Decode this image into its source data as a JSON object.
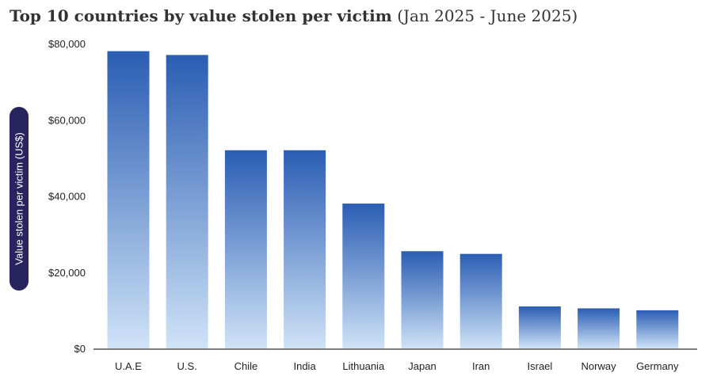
{
  "title": {
    "main": "Top 10 countries by value stolen per victim",
    "sub": "(Jan 2025 - June 2025)"
  },
  "chart_data": {
    "type": "bar",
    "ylabel": "Value stolen per victim (US$)",
    "xlabel": "",
    "categories": [
      "U.A.E",
      "U.S.",
      "Chile",
      "India",
      "Lithuania",
      "Japan",
      "Iran",
      "Israel",
      "Norway",
      "Germany"
    ],
    "values": [
      78000,
      77000,
      52000,
      52000,
      38000,
      25500,
      24800,
      11000,
      10500,
      10000
    ],
    "ylim": [
      0,
      80000
    ],
    "yticks": [
      0,
      20000,
      40000,
      60000,
      80000
    ],
    "ytick_labels": [
      "$0",
      "$20,000",
      "$40,000",
      "$60,000",
      "$80,000"
    ],
    "grid": false,
    "colors": {
      "bar_top": "#2a5db3",
      "bar_bottom": "#cfe3f7",
      "axis": "#555555",
      "ylabel_bg": "#27245e"
    }
  }
}
